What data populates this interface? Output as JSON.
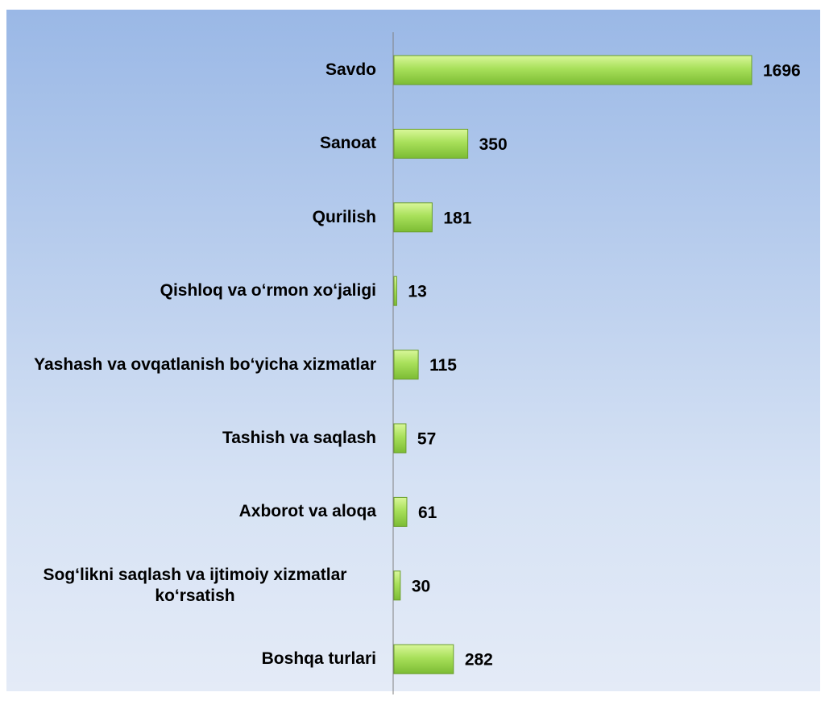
{
  "chart_data": {
    "type": "bar",
    "orientation": "horizontal",
    "categories": [
      "Savdo",
      "Sanoat",
      "Qurilish",
      "Qishloq va o‘rmon xo‘jaligi",
      "Yashash va ovqatlanish bo‘yicha xizmatlar",
      "Tashish va saqlash",
      "Axborot va aloqa",
      "Sog‘likni saqlash va ijtimoiy xizmatlar ko‘rsatish",
      "Boshqa turlari"
    ],
    "values": [
      1696,
      350,
      181,
      13,
      115,
      57,
      61,
      30,
      282
    ],
    "color": "#9ad64a"
  }
}
